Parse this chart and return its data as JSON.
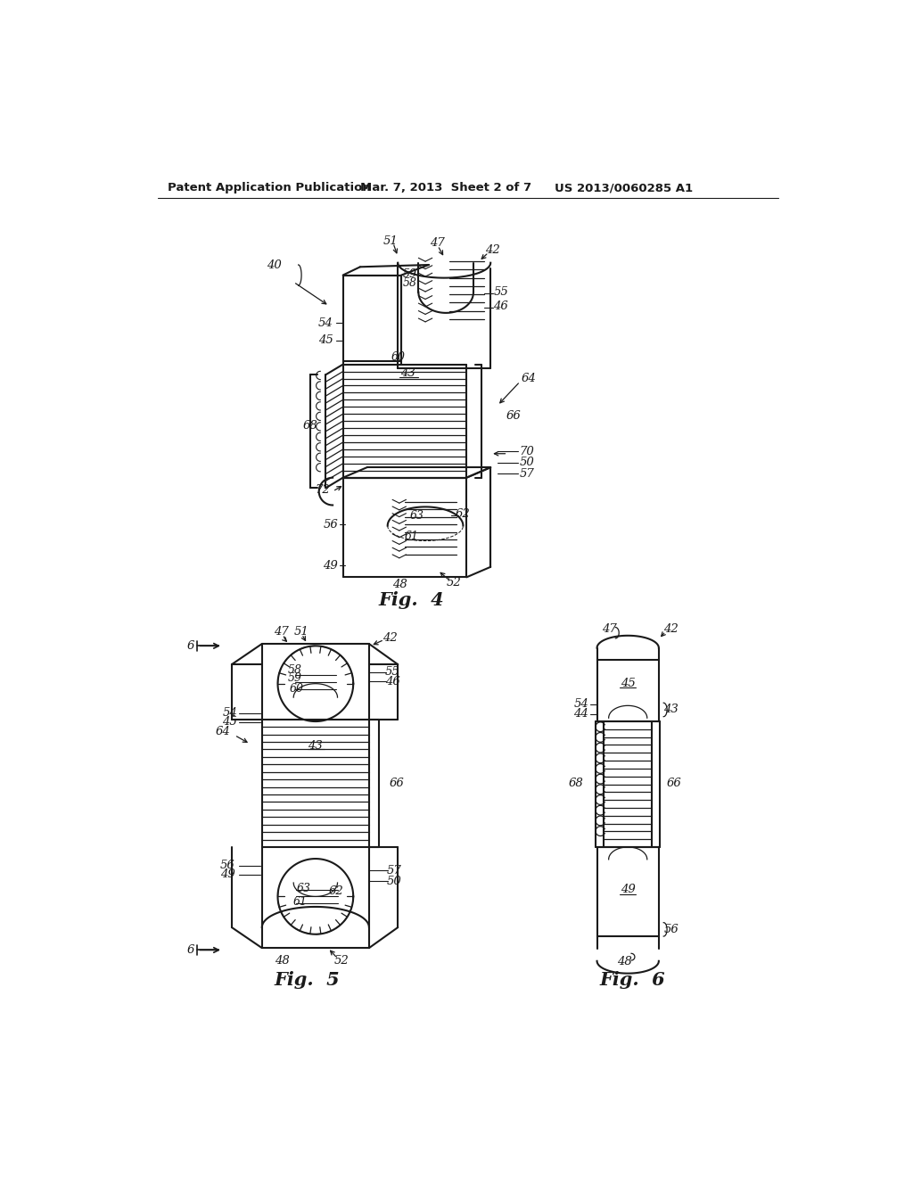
{
  "bg_color": "#ffffff",
  "header_left": "Patent Application Publication",
  "header_mid": "Mar. 7, 2013  Sheet 2 of 7",
  "header_right": "US 2013/0060285 A1",
  "fig4_label": "Fig.  4",
  "fig5_label": "Fig.  5",
  "fig6_label": "Fig.  6",
  "line_color": "#1a1a1a",
  "line_width": 1.5,
  "thin_line": 0.8
}
